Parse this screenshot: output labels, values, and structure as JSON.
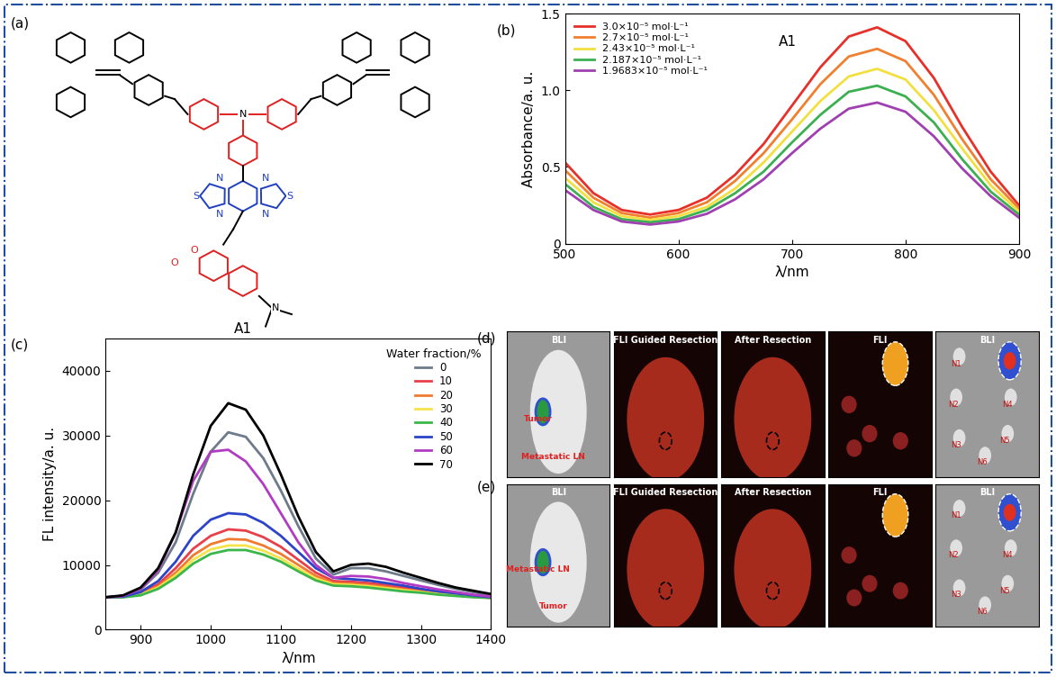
{
  "chart_data": [
    {
      "type": "line",
      "label": "(b)",
      "x_label": "λ/nm",
      "y_label": "Absorbance/a. u.",
      "annotation": "A1",
      "x": [
        500,
        525,
        550,
        575,
        600,
        625,
        650,
        675,
        700,
        725,
        750,
        775,
        800,
        825,
        850,
        875,
        900
      ],
      "series": [
        {
          "name": "3.0×10⁻⁵ mol·L⁻¹",
          "color": "#e8302a",
          "values": [
            0.53,
            0.33,
            0.22,
            0.19,
            0.22,
            0.3,
            0.45,
            0.65,
            0.9,
            1.15,
            1.35,
            1.41,
            1.32,
            1.08,
            0.76,
            0.47,
            0.25
          ]
        },
        {
          "name": "2.7×10⁻⁵ mol·L⁻¹",
          "color": "#f08030",
          "values": [
            0.48,
            0.3,
            0.2,
            0.17,
            0.2,
            0.27,
            0.41,
            0.59,
            0.81,
            1.04,
            1.22,
            1.27,
            1.19,
            0.97,
            0.68,
            0.42,
            0.23
          ]
        },
        {
          "name": "2.43×10⁻⁵ mol·L⁻¹",
          "color": "#f2e040",
          "values": [
            0.43,
            0.27,
            0.18,
            0.155,
            0.18,
            0.24,
            0.36,
            0.53,
            0.73,
            0.93,
            1.09,
            1.14,
            1.07,
            0.87,
            0.62,
            0.38,
            0.21
          ]
        },
        {
          "name": "2.187×10⁻⁵ mol·L⁻¹",
          "color": "#3cb050",
          "values": [
            0.39,
            0.24,
            0.16,
            0.14,
            0.16,
            0.22,
            0.33,
            0.47,
            0.66,
            0.84,
            0.99,
            1.03,
            0.96,
            0.79,
            0.55,
            0.34,
            0.19
          ]
        },
        {
          "name": "1.9683×10⁻⁵ mol·L⁻¹",
          "color": "#a040b0",
          "values": [
            0.35,
            0.22,
            0.145,
            0.125,
            0.145,
            0.195,
            0.29,
            0.42,
            0.59,
            0.75,
            0.88,
            0.92,
            0.86,
            0.7,
            0.49,
            0.31,
            0.17
          ]
        }
      ],
      "xlim": [
        500,
        900
      ],
      "xticks": [
        500,
        600,
        700,
        800,
        900
      ],
      "ylim": [
        0,
        1.5
      ],
      "yticks": [
        0,
        0.5,
        {
          "value": 1,
          "label": "1.0"
        },
        1.5
      ],
      "legend": "upper left"
    },
    {
      "type": "line",
      "label": "(c)",
      "x_label": "λ/nm",
      "y_label": "FL intensity/a. u.",
      "legend_title": "Water fraction/%",
      "x": [
        850,
        875,
        900,
        925,
        950,
        975,
        1000,
        1025,
        1050,
        1075,
        1100,
        1125,
        1150,
        1175,
        1200,
        1225,
        1250,
        1275,
        1300,
        1325,
        1350,
        1375,
        1400
      ],
      "series": [
        {
          "name": "0",
          "color": "#6e7b8b",
          "values": [
            5000,
            5200,
            6200,
            8800,
            13500,
            21000,
            27500,
            30500,
            29800,
            26500,
            21500,
            16000,
            11000,
            8500,
            9500,
            9500,
            9000,
            8300,
            7600,
            6900,
            6300,
            5800,
            5300
          ]
        },
        {
          "name": "10",
          "color": "#e8404a",
          "values": [
            5000,
            5100,
            5600,
            7000,
            9500,
            12500,
            14500,
            15500,
            15300,
            14300,
            12800,
            10800,
            8800,
            7500,
            7400,
            7200,
            6900,
            6500,
            6100,
            5700,
            5400,
            5200,
            5000
          ]
        },
        {
          "name": "20",
          "color": "#f07a30",
          "values": [
            5000,
            5100,
            5500,
            6700,
            8800,
            11500,
            13200,
            14000,
            13900,
            13000,
            11700,
            10000,
            8300,
            7200,
            7100,
            6900,
            6600,
            6200,
            5900,
            5600,
            5300,
            5100,
            4900
          ]
        },
        {
          "name": "30",
          "color": "#f5e34a",
          "values": [
            5000,
            5050,
            5400,
            6500,
            8400,
            10800,
            12400,
            13000,
            13000,
            12200,
            11000,
            9400,
            7900,
            7000,
            6900,
            6700,
            6400,
            6100,
            5800,
            5500,
            5300,
            5100,
            4900
          ]
        },
        {
          "name": "40",
          "color": "#3cb54a",
          "values": [
            5000,
            5000,
            5300,
            6300,
            8000,
            10200,
            11700,
            12300,
            12300,
            11600,
            10500,
            9000,
            7600,
            6800,
            6700,
            6500,
            6200,
            5900,
            5700,
            5400,
            5200,
            5000,
            4900
          ]
        },
        {
          "name": "50",
          "color": "#2c45c8",
          "values": [
            5000,
            5100,
            5800,
            7500,
            10500,
            14500,
            17000,
            18000,
            17800,
            16500,
            14500,
            12000,
            9500,
            8000,
            7800,
            7600,
            7200,
            6800,
            6300,
            5900,
            5600,
            5300,
            5000
          ]
        },
        {
          "name": "60",
          "color": "#b23bc4",
          "values": [
            5000,
            5200,
            6300,
            9200,
            15000,
            23000,
            27500,
            27800,
            26000,
            22500,
            18000,
            13500,
            10000,
            8000,
            8300,
            8200,
            7800,
            7200,
            6700,
            6200,
            5800,
            5400,
            5100
          ]
        },
        {
          "name": "70",
          "color": "#000000",
          "values": [
            5000,
            5300,
            6500,
            9500,
            15000,
            24000,
            31500,
            35000,
            34000,
            30000,
            24000,
            17500,
            12000,
            9000,
            10000,
            10200,
            9700,
            8800,
            8000,
            7200,
            6500,
            6000,
            5500
          ]
        }
      ],
      "xlim": [
        850,
        1400
      ],
      "xticks": [
        900,
        1000,
        1100,
        1200,
        1300,
        1400
      ],
      "ylim": [
        0,
        45000
      ],
      "yticks": [
        0,
        10000,
        20000,
        30000,
        40000
      ],
      "legend": "upper right"
    }
  ],
  "structure": {
    "label": "(a)",
    "name": "A1",
    "atoms": [
      "N",
      "N",
      "S",
      "N",
      "N",
      "S",
      "N",
      "O",
      "O",
      "N"
    ]
  },
  "images": [
    {
      "label": "(d)",
      "frames": [
        {
          "title": "BLI",
          "notes": [
            "Tumor",
            "Metastatic LN"
          ]
        },
        {
          "title": "FLI Guided Resection",
          "notes": []
        },
        {
          "title": "After Resection",
          "notes": []
        },
        {
          "title": "FLI",
          "notes": []
        },
        {
          "title": "BLI",
          "notes": [
            "N1",
            "N2",
            "N3",
            "N4",
            "N5",
            "N6"
          ]
        }
      ]
    },
    {
      "label": "(e)",
      "frames": [
        {
          "title": "BLI",
          "notes": [
            "Metastatic LN",
            "Tumor"
          ]
        },
        {
          "title": "FLI Guided Resection",
          "notes": []
        },
        {
          "title": "After Resection",
          "notes": []
        },
        {
          "title": "FLI",
          "notes": []
        },
        {
          "title": "BLI",
          "notes": [
            "N1",
            "N2",
            "N3",
            "N4",
            "N5",
            "N6"
          ]
        }
      ]
    }
  ]
}
